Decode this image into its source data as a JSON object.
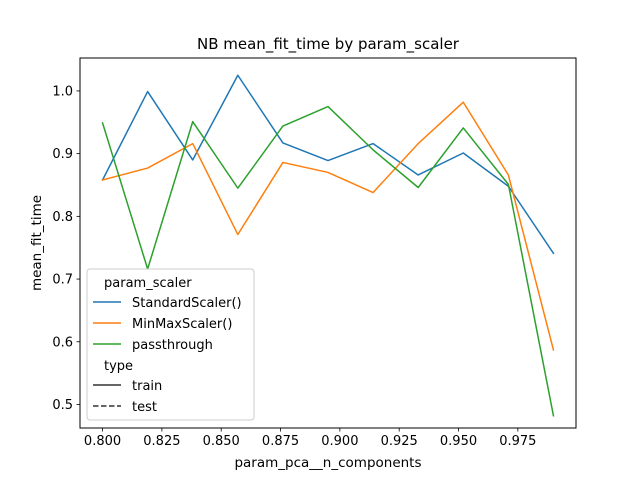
{
  "chart_data": {
    "type": "line",
    "title": "NB mean_fit_time by param_scaler",
    "xlabel": "param_pca__n_components",
    "ylabel": "mean_fit_time",
    "xlim": [
      0.7905,
      0.9995
    ],
    "ylim": [
      0.4625,
      1.0525
    ],
    "xticks": [
      0.8,
      0.825,
      0.85,
      0.875,
      0.9,
      0.925,
      0.95,
      0.975
    ],
    "xtick_labels": [
      "0.800",
      "0.825",
      "0.850",
      "0.875",
      "0.900",
      "0.925",
      "0.950",
      "0.975"
    ],
    "yticks": [
      0.5,
      0.6,
      0.7,
      0.8,
      0.9,
      1.0
    ],
    "ytick_labels": [
      "0.5",
      "0.6",
      "0.7",
      "0.8",
      "0.9",
      "1.0"
    ],
    "grid": false,
    "legend_placement": "lower-left",
    "legend": {
      "hue_title": "param_scaler",
      "style_title": "type",
      "style_entries": [
        {
          "label": "train",
          "dash": "solid"
        },
        {
          "label": "test",
          "dash": "dashed"
        }
      ]
    },
    "x": [
      0.8,
      0.819,
      0.838,
      0.857,
      0.876,
      0.895,
      0.914,
      0.933,
      0.952,
      0.971,
      0.99
    ],
    "series": [
      {
        "name": "StandardScaler()",
        "color": "#1f77b4",
        "values": [
          0.858,
          0.999,
          0.89,
          1.025,
          0.917,
          0.889,
          0.916,
          0.866,
          0.901,
          0.848,
          0.741
        ]
      },
      {
        "name": "MinMaxScaler()",
        "color": "#ff7f0e",
        "values": [
          0.858,
          0.877,
          0.916,
          0.771,
          0.886,
          0.87,
          0.838,
          0.916,
          0.982,
          0.866,
          0.587
        ]
      },
      {
        "name": "passthrough",
        "color": "#2ca02c",
        "values": [
          0.949,
          0.716,
          0.951,
          0.845,
          0.944,
          0.975,
          0.906,
          0.846,
          0.941,
          0.851,
          0.482
        ]
      }
    ]
  }
}
